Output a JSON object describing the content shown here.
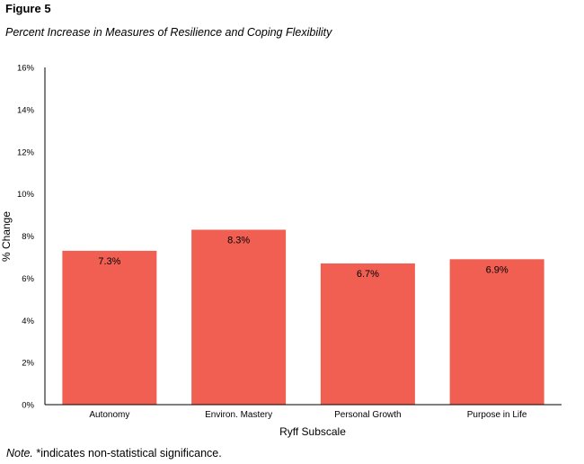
{
  "figure": {
    "label": "Figure 5",
    "title": "Percent Increase in Measures of Resilience and Coping Flexibility"
  },
  "note": {
    "prefix": "Note.",
    "text": " *indicates non-statistical significance."
  },
  "colors": {
    "bar": "#f15f52",
    "axis": "#000000",
    "text": "#000000"
  },
  "chart_data": {
    "type": "bar",
    "categories": [
      "Autonomy",
      "Environ. Mastery",
      "Personal Growth",
      "Purpose in Life"
    ],
    "values": [
      7.3,
      8.3,
      6.7,
      6.9
    ],
    "data_labels": [
      "7.3%",
      "8.3%",
      "6.7%",
      "6.9%"
    ],
    "xlabel": "Ryff Subscale",
    "ylabel": "% Change",
    "ylim": [
      0,
      16
    ],
    "yticks": [
      0,
      2,
      4,
      6,
      8,
      10,
      12,
      14,
      16
    ],
    "ytick_labels": [
      "0%",
      "2%",
      "4%",
      "6%",
      "8%",
      "10%",
      "12%",
      "14%",
      "16%"
    ],
    "grid": false,
    "legend": "none"
  }
}
